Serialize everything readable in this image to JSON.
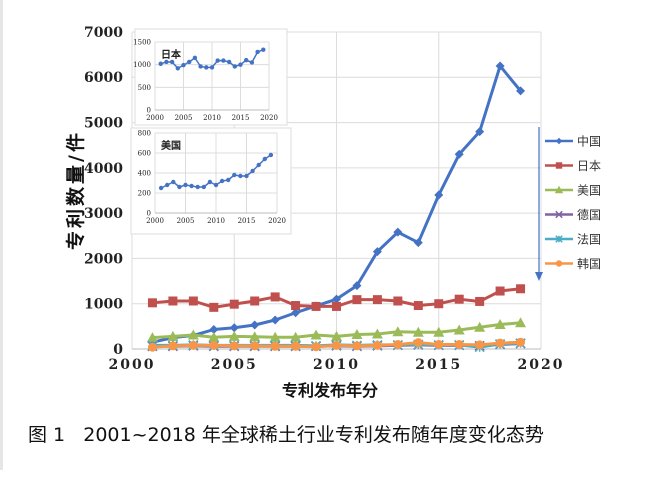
{
  "caption": "图 1   2001~2018 年全球稀土行业专利发布随年度变化态势",
  "chart_data": [
    {
      "type": "line",
      "xlabel": "专利发布年分",
      "ylabel": "专利数量/件",
      "xlim": [
        2000,
        2020
      ],
      "ylim": [
        0,
        7000
      ],
      "xticks": [
        2000,
        2005,
        2010,
        2015,
        2020
      ],
      "yticks": [
        0,
        1000,
        2000,
        3000,
        4000,
        5000,
        6000,
        7000
      ],
      "grid": true,
      "legend_position": "right",
      "x": [
        2001,
        2002,
        2003,
        2004,
        2005,
        2006,
        2007,
        2008,
        2009,
        2010,
        2011,
        2012,
        2013,
        2014,
        2015,
        2016,
        2017,
        2018,
        2019
      ],
      "series": [
        {
          "name": "中国",
          "color": "#4472c4",
          "marker": "diamond",
          "values": [
            150,
            250,
            300,
            430,
            470,
            530,
            640,
            800,
            950,
            1100,
            1400,
            2150,
            2580,
            2350,
            3400,
            4300,
            4800,
            6250,
            5700
          ]
        },
        {
          "name": "日本",
          "color": "#c0504d",
          "marker": "square",
          "values": [
            1020,
            1060,
            1060,
            920,
            990,
            1060,
            1150,
            960,
            940,
            940,
            1090,
            1090,
            1060,
            960,
            1000,
            1100,
            1050,
            1280,
            1330
          ]
        },
        {
          "name": "美国",
          "color": "#9bbb59",
          "marker": "triangle",
          "values": [
            250,
            280,
            310,
            260,
            280,
            270,
            260,
            260,
            310,
            280,
            320,
            330,
            380,
            370,
            370,
            420,
            480,
            540,
            580
          ]
        },
        {
          "name": "德国",
          "color": "#8064a2",
          "marker": "x",
          "values": [
            60,
            60,
            70,
            60,
            60,
            60,
            60,
            60,
            60,
            70,
            60,
            70,
            80,
            90,
            80,
            80,
            70,
            100,
            120
          ]
        },
        {
          "name": "法国",
          "color": "#4bacc6",
          "marker": "star",
          "values": [
            80,
            80,
            90,
            80,
            80,
            80,
            80,
            80,
            70,
            90,
            80,
            90,
            90,
            100,
            90,
            90,
            40,
            110,
            130
          ]
        },
        {
          "name": "韩国",
          "color": "#f79646",
          "marker": "circle",
          "values": [
            40,
            70,
            80,
            80,
            70,
            70,
            60,
            60,
            50,
            80,
            70,
            80,
            100,
            140,
            100,
            100,
            90,
            130,
            150
          ]
        }
      ]
    },
    {
      "type": "line",
      "title": "日本",
      "xlim": [
        2000,
        2020
      ],
      "ylim": [
        0,
        1500
      ],
      "xticks": [
        2000,
        2005,
        2010,
        2015,
        2020
      ],
      "yticks": [
        0,
        500,
        1000,
        1500
      ],
      "grid": true,
      "x": [
        2001,
        2002,
        2003,
        2004,
        2005,
        2006,
        2007,
        2008,
        2009,
        2010,
        2011,
        2012,
        2013,
        2014,
        2015,
        2016,
        2017,
        2018,
        2019
      ],
      "series": [
        {
          "color": "#4472c4",
          "values": [
            1020,
            1060,
            1060,
            920,
            990,
            1060,
            1150,
            960,
            940,
            940,
            1090,
            1090,
            1060,
            960,
            1000,
            1100,
            1050,
            1280,
            1330
          ]
        }
      ]
    },
    {
      "type": "line",
      "title": "美国",
      "xlim": [
        2000,
        2020
      ],
      "ylim": [
        0,
        800
      ],
      "xticks": [
        2000,
        2005,
        2010,
        2015,
        2020
      ],
      "yticks": [
        0,
        200,
        400,
        600,
        800
      ],
      "grid": true,
      "x": [
        2001,
        2002,
        2003,
        2004,
        2005,
        2006,
        2007,
        2008,
        2009,
        2010,
        2011,
        2012,
        2013,
        2014,
        2015,
        2016,
        2017,
        2018,
        2019
      ],
      "series": [
        {
          "color": "#4472c4",
          "values": [
            250,
            280,
            310,
            260,
            280,
            270,
            260,
            260,
            310,
            280,
            320,
            330,
            380,
            370,
            370,
            420,
            480,
            540,
            580
          ]
        }
      ]
    }
  ]
}
